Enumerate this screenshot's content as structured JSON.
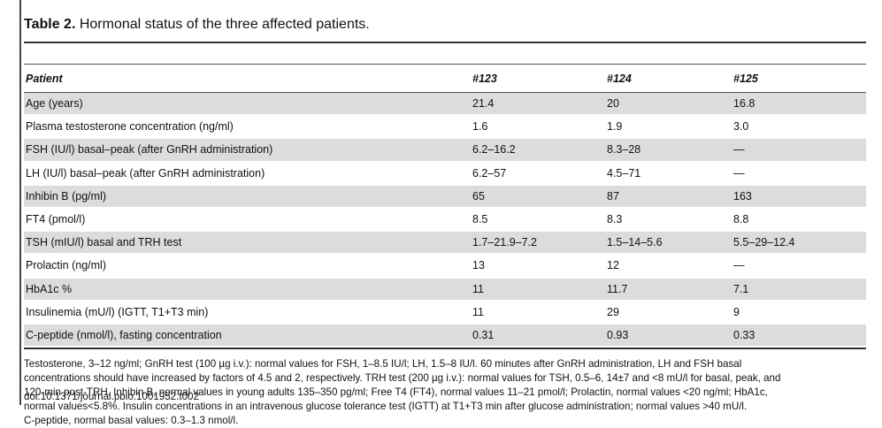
{
  "title": {
    "label": "Table 2.",
    "text": "Hormonal status of the three affected patients."
  },
  "table": {
    "headers": [
      "Patient",
      "#123",
      "#124",
      "#125"
    ],
    "rows": [
      {
        "label": "Age (years)",
        "values": [
          "21.4",
          "20",
          "16.8"
        ],
        "shaded": true
      },
      {
        "label": "Plasma testosterone concentration (ng/ml)",
        "values": [
          "1.6",
          "1.9",
          "3.0"
        ],
        "shaded": false
      },
      {
        "label": "FSH (IU/l) basal–peak (after GnRH administration)",
        "values": [
          "6.2–16.2",
          "8.3–28",
          "—"
        ],
        "shaded": true
      },
      {
        "label": "LH (IU/l) basal–peak (after GnRH administration)",
        "values": [
          "6.2–57",
          "4.5–71",
          "—"
        ],
        "shaded": false
      },
      {
        "label": "Inhibin B (pg/ml)",
        "values": [
          "65",
          "87",
          "163"
        ],
        "shaded": true
      },
      {
        "label": "FT4 (pmol/l)",
        "values": [
          "8.5",
          "8.3",
          "8.8"
        ],
        "shaded": false
      },
      {
        "label": "TSH (mIU/l) basal and TRH test",
        "values": [
          "1.7–21.9–7.2",
          "1.5–14–5.6",
          "5.5–29–12.4"
        ],
        "shaded": true
      },
      {
        "label": "Prolactin (ng/ml)",
        "values": [
          "13",
          "12",
          "—"
        ],
        "shaded": false
      },
      {
        "label": "HbA1c %",
        "values": [
          "11",
          "11.7",
          "7.1"
        ],
        "shaded": true
      },
      {
        "label": "Insulinemia (mU/l) (IGTT, T1+T3 min)",
        "values": [
          "11",
          "29",
          "9"
        ],
        "shaded": false
      },
      {
        "label": "C-peptide (nmol/l), fasting concentration",
        "values": [
          "0.31",
          "0.93",
          "0.33"
        ],
        "shaded": true
      }
    ]
  },
  "footnote": [
    "Testosterone, 3–12 ng/ml; GnRH test (100 µg i.v.): normal values for FSH, 1–8.5 IU/l; LH, 1.5–8 IU/l. 60 minutes after GnRH administration, LH and FSH basal",
    "concentrations should have increased by factors of 4.5 and 2, respectively. TRH test (200 µg i.v.): normal values for TSH, 0.5–6, 14±7 and <8 mU/l for basal, peak, and",
    "120-min post-TRH. Inhibin B, normal values in young adults 135–350 pg/ml; Free T4 (FT4), normal values 11–21 pmol/l; Prolactin, normal values <20 ng/ml; HbA1c,",
    "normal values<5.8%. Insulin concentrations in an intravenous glucose tolerance test (IGTT) at T1+T3 min after glucose administration; normal values >40 mU/l.",
    "C-peptide, normal basal values: 0.3–1.3 nmol/l."
  ],
  "doi": "doi:10.1371/journal.pbio.1001952.t002"
}
